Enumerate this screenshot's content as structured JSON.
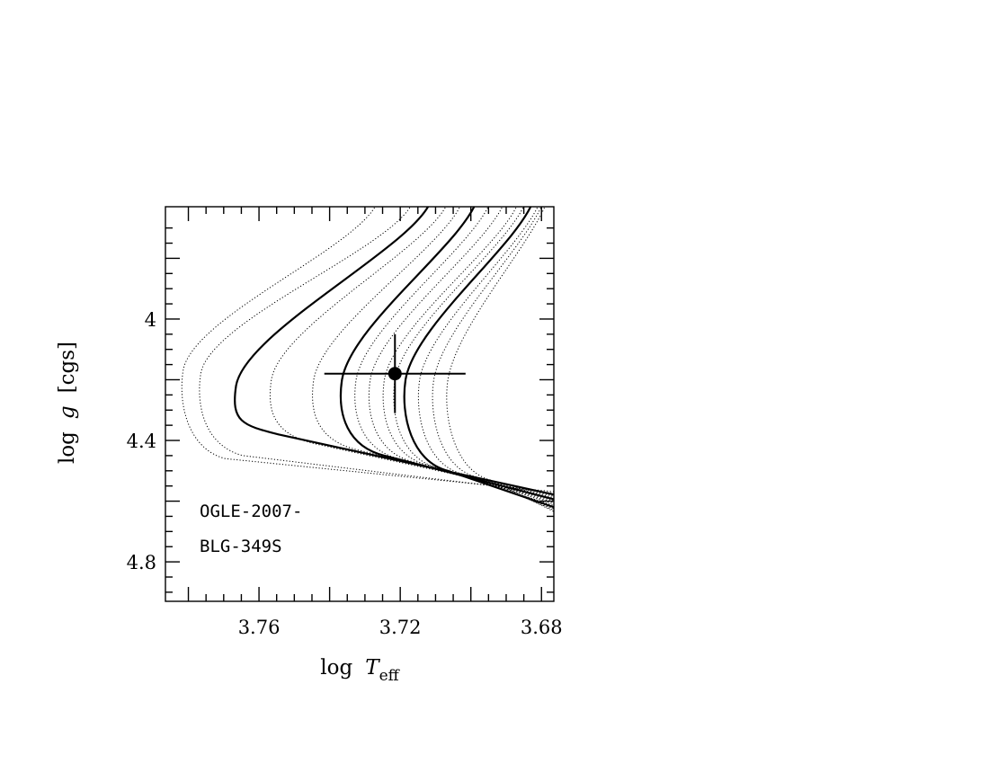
{
  "chart_data": {
    "type": "line",
    "xlabel": {
      "prefix": "log",
      "italic": "T",
      "sub": "eff"
    },
    "ylabel": {
      "prefix": "log",
      "italic": "g",
      "suffix": "[cgs]"
    },
    "xlim": [
      3.7865,
      3.6765
    ],
    "ylim": [
      3.63,
      4.93
    ],
    "x_ticks": [
      {
        "value": 3.76,
        "label": "3.76"
      },
      {
        "value": 3.72,
        "label": "3.72"
      },
      {
        "value": 3.68,
        "label": "3.68"
      }
    ],
    "y_ticks": [
      {
        "value": 4.0,
        "label": "4"
      },
      {
        "value": 4.4,
        "label": "4.4"
      },
      {
        "value": 4.8,
        "label": "4.8"
      }
    ],
    "annotation": [
      "OGLE-2007-",
      "BLG-349S"
    ],
    "star": {
      "logTeff": 3.7215,
      "logg": 4.18,
      "xerr": 0.005,
      "yerr": 0.13
    },
    "isochrone_shape": {
      "x_upper_right": 3.6765,
      "x_lower_right": 3.6765,
      "y_lower_right_top": 4.57,
      "y_lower_right_bottom": 4.63
    },
    "series": [
      {
        "style": "dotted",
        "turnoff_x": 3.7815,
        "top_x": 3.7265,
        "turnoff_y": 4.17,
        "lower_y": 4.46
      },
      {
        "style": "dotted",
        "turnoff_x": 3.7765,
        "top_x": 3.7165,
        "turnoff_y": 4.18,
        "lower_y": 4.45
      },
      {
        "style": "solid",
        "turnoff_x": 3.7665,
        "top_x": 3.7115,
        "turnoff_y": 4.22,
        "lower_y": 4.38
      },
      {
        "style": "dotted",
        "turnoff_x": 3.7565,
        "top_x": 3.7065,
        "turnoff_y": 4.2,
        "lower_y": 4.41
      },
      {
        "style": "dotted",
        "turnoff_x": 3.7445,
        "top_x": 3.7025,
        "turnoff_y": 4.2,
        "lower_y": 4.43
      },
      {
        "style": "solid",
        "turnoff_x": 3.7365,
        "top_x": 3.6985,
        "turnoff_y": 4.2,
        "lower_y": 4.45
      },
      {
        "style": "dotted",
        "turnoff_x": 3.7325,
        "top_x": 3.6945,
        "turnoff_y": 4.2,
        "lower_y": 4.46
      },
      {
        "style": "dotted",
        "turnoff_x": 3.7285,
        "top_x": 3.6905,
        "turnoff_y": 4.2,
        "lower_y": 4.47
      },
      {
        "style": "dotted",
        "turnoff_x": 3.7245,
        "top_x": 3.6865,
        "turnoff_y": 4.2,
        "lower_y": 4.48
      },
      {
        "style": "dotted",
        "turnoff_x": 3.7215,
        "top_x": 3.6845,
        "turnoff_y": 4.2,
        "lower_y": 4.49
      },
      {
        "style": "solid",
        "turnoff_x": 3.7185,
        "top_x": 3.6825,
        "turnoff_y": 4.2,
        "lower_y": 4.5
      },
      {
        "style": "dotted",
        "turnoff_x": 3.7145,
        "top_x": 3.6805,
        "turnoff_y": 4.2,
        "lower_y": 4.51
      },
      {
        "style": "dotted",
        "turnoff_x": 3.7105,
        "top_x": 3.6795,
        "turnoff_y": 4.2,
        "lower_y": 4.52
      },
      {
        "style": "dotted",
        "turnoff_x": 3.7065,
        "top_x": 3.6785,
        "turnoff_y": 4.2,
        "lower_y": 4.53
      }
    ]
  }
}
